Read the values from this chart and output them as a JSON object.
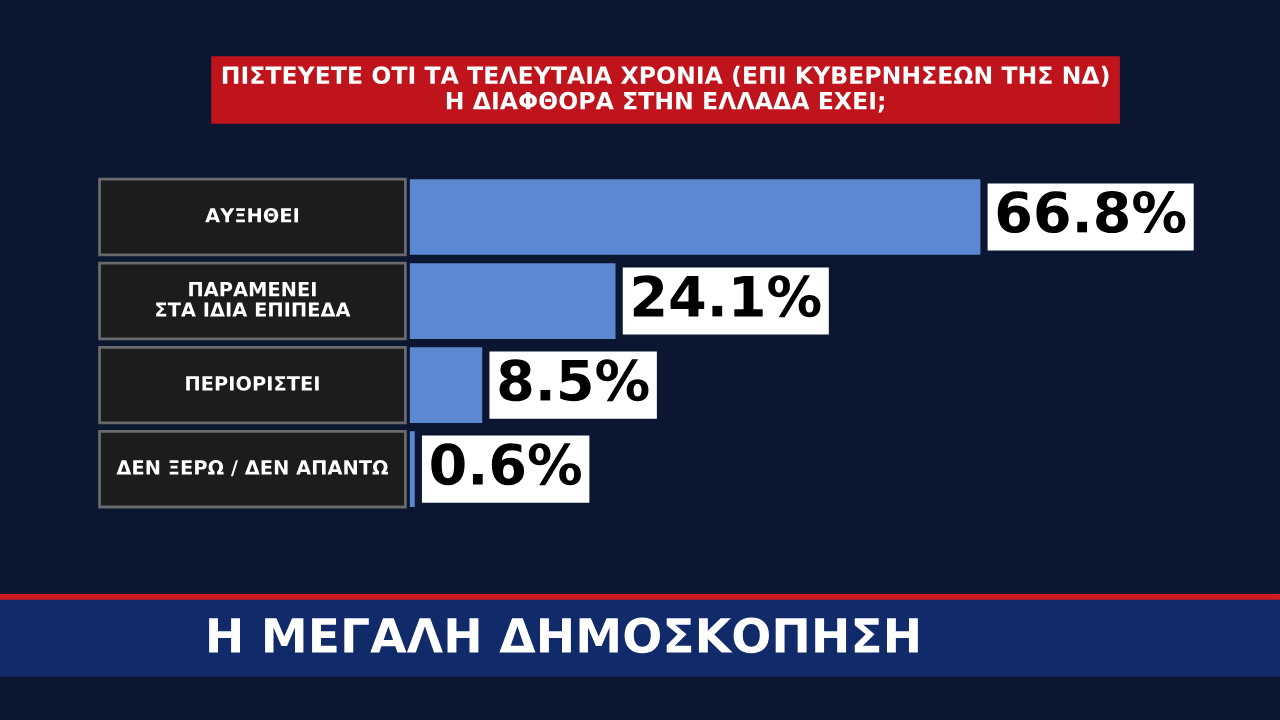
{
  "chart_data": {
    "type": "bar",
    "orientation": "horizontal",
    "title": "ΠΙΣΤΕΥΕΤΕ ΟΤΙ ΤΑ ΤΕΛΕΥΤΑΙΑ ΧΡΟΝΙΑ (ΕΠΙ ΚΥΒΕΡΝΗΣΕΩΝ ΤΗΣ ΝΔ)\nΗ ΔΙΑΦΘΟΡΑ ΣΤΗΝ ΕΛΛΑΔΑ ΕΧΕΙ;",
    "categories": [
      "ΑΥΞΗΘΕΙ",
      "ΠΑΡΑΜΕΝΕΙ\nΣΤΑ ΙΔΙΑ ΕΠΙΠΕΔΑ",
      "ΠΕΡΙΟΡΙΣΤΕΙ",
      "ΔΕΝ ΞΕΡΩ / ΔΕΝ ΑΠΑΝΤΩ"
    ],
    "values": [
      66.8,
      24.1,
      8.5,
      0.6
    ],
    "value_labels": [
      "66.8%",
      "24.1%",
      "8.5%",
      "0.6%"
    ],
    "color": "#5b88d0",
    "annotations": [
      "Η ΜΕΓΑΛΗ ΔΗΜΟΣΚΟΠΗΣΗ"
    ]
  }
}
